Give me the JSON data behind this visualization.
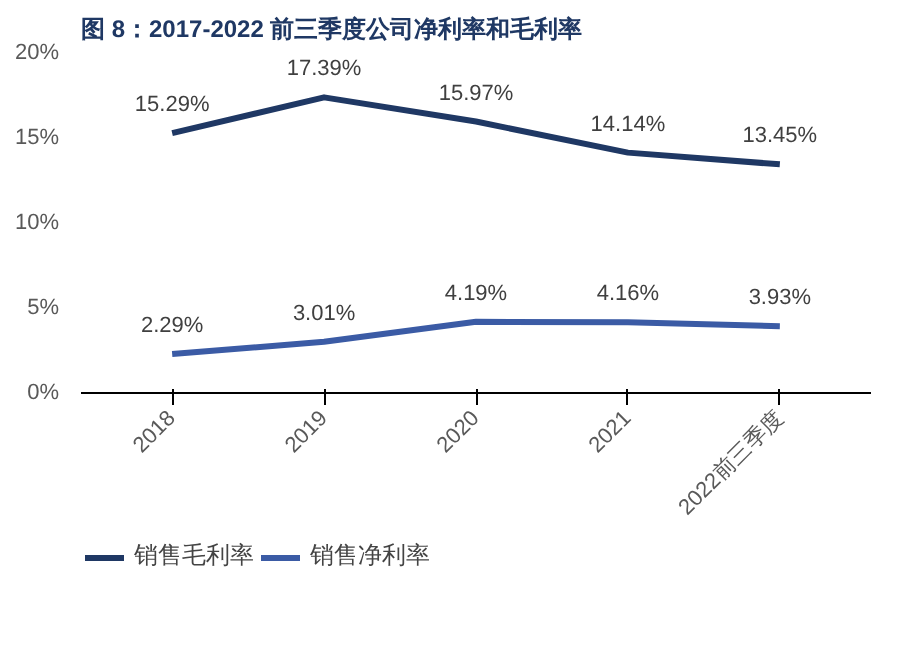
{
  "chart_data": {
    "type": "line",
    "title": "图 8：2017-2022 前三季度公司净利率和毛利率",
    "categories": [
      "2018",
      "2019",
      "2020",
      "2021",
      "2022前三季度"
    ],
    "series": [
      {
        "name": "销售毛利率",
        "color": "#1f3864",
        "values": [
          15.29,
          17.39,
          15.97,
          14.14,
          13.45
        ],
        "value_labels": [
          "15.29%",
          "17.39%",
          "15.97%",
          "14.14%",
          "13.45%"
        ]
      },
      {
        "name": "销售净利率",
        "color": "#3b5ba5",
        "values": [
          2.29,
          3.01,
          4.19,
          4.16,
          3.93
        ],
        "value_labels": [
          "2.29%",
          "3.01%",
          "4.19%",
          "4.16%",
          "3.93%"
        ]
      }
    ],
    "ylim": [
      0,
      20
    ],
    "yticks": [
      {
        "value": 0,
        "label": "0%"
      },
      {
        "value": 5,
        "label": "5%"
      },
      {
        "value": 10,
        "label": "10%"
      },
      {
        "value": 15,
        "label": "15%"
      },
      {
        "value": 20,
        "label": "20%"
      }
    ],
    "grid": false,
    "legend": "bottom",
    "marker": "none",
    "line_style": "solid"
  }
}
